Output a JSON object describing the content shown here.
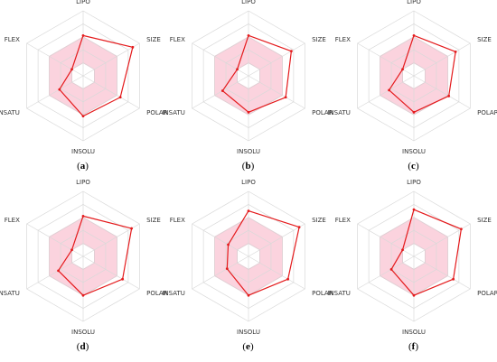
{
  "colors": {
    "grid": "#d9d9d9",
    "optimal_fill": "#fbd3de",
    "optimal_stroke": "#f2a9bd",
    "series": "#e41a1c"
  },
  "chart_data": [
    {
      "type": "radar",
      "caption": "a",
      "axes": [
        "LIPO",
        "SIZE",
        "POLAR",
        "INSOLU",
        "INSATU",
        "FLEX"
      ],
      "rings": 5,
      "r_max": 1.0,
      "optimal_range": {
        "inner": [
          0.2,
          0.2,
          0.2,
          0.2,
          0.2,
          0.2
        ],
        "outer": [
          0.6,
          0.6,
          0.6,
          0.6,
          0.6,
          0.6
        ]
      },
      "values": [
        0.62,
        0.88,
        0.66,
        0.62,
        0.42,
        0.2
      ]
    },
    {
      "type": "radar",
      "caption": "b",
      "axes": [
        "LIPO",
        "SIZE",
        "POLAR",
        "INSOLU",
        "INSATU",
        "FLEX"
      ],
      "rings": 5,
      "r_max": 1.0,
      "optimal_range": {
        "inner": [
          0.2,
          0.2,
          0.2,
          0.2,
          0.2,
          0.2
        ],
        "outer": [
          0.6,
          0.6,
          0.6,
          0.6,
          0.6,
          0.6
        ]
      },
      "values": [
        0.62,
        0.76,
        0.66,
        0.56,
        0.46,
        0.2
      ]
    },
    {
      "type": "radar",
      "caption": "c",
      "axes": [
        "LIPO",
        "SIZE",
        "POLAR",
        "INSOLU",
        "INSATU",
        "FLEX"
      ],
      "rings": 5,
      "r_max": 1.0,
      "optimal_range": {
        "inner": [
          0.2,
          0.2,
          0.2,
          0.2,
          0.2,
          0.2
        ],
        "outer": [
          0.6,
          0.6,
          0.6,
          0.6,
          0.6,
          0.6
        ]
      },
      "values": [
        0.62,
        0.74,
        0.62,
        0.56,
        0.44,
        0.2
      ]
    },
    {
      "type": "radar",
      "caption": "d",
      "axes": [
        "LIPO",
        "SIZE",
        "POLAR",
        "INSOLU",
        "INSATU",
        "FLEX"
      ],
      "rings": 5,
      "r_max": 1.0,
      "optimal_range": {
        "inner": [
          0.2,
          0.2,
          0.2,
          0.2,
          0.2,
          0.2
        ],
        "outer": [
          0.6,
          0.6,
          0.6,
          0.6,
          0.6,
          0.6
        ]
      },
      "values": [
        0.62,
        0.86,
        0.7,
        0.6,
        0.44,
        0.2
      ]
    },
    {
      "type": "radar",
      "caption": "e",
      "axes": [
        "LIPO",
        "SIZE",
        "POLAR",
        "INSOLU",
        "INSATU",
        "FLEX"
      ],
      "rings": 5,
      "r_max": 1.0,
      "optimal_range": {
        "inner": [
          0.2,
          0.2,
          0.2,
          0.2,
          0.2,
          0.2
        ],
        "outer": [
          0.6,
          0.6,
          0.6,
          0.6,
          0.6,
          0.6
        ]
      },
      "values": [
        0.7,
        0.9,
        0.7,
        0.6,
        0.38,
        0.36
      ]
    },
    {
      "type": "radar",
      "caption": "f",
      "axes": [
        "LIPO",
        "SIZE",
        "POLAR",
        "INSOLU",
        "INSATU",
        "FLEX"
      ],
      "rings": 5,
      "r_max": 1.0,
      "optimal_range": {
        "inner": [
          0.2,
          0.2,
          0.2,
          0.2,
          0.2,
          0.2
        ],
        "outer": [
          0.6,
          0.6,
          0.6,
          0.6,
          0.6,
          0.6
        ]
      },
      "values": [
        0.72,
        0.84,
        0.7,
        0.6,
        0.4,
        0.2
      ]
    }
  ]
}
